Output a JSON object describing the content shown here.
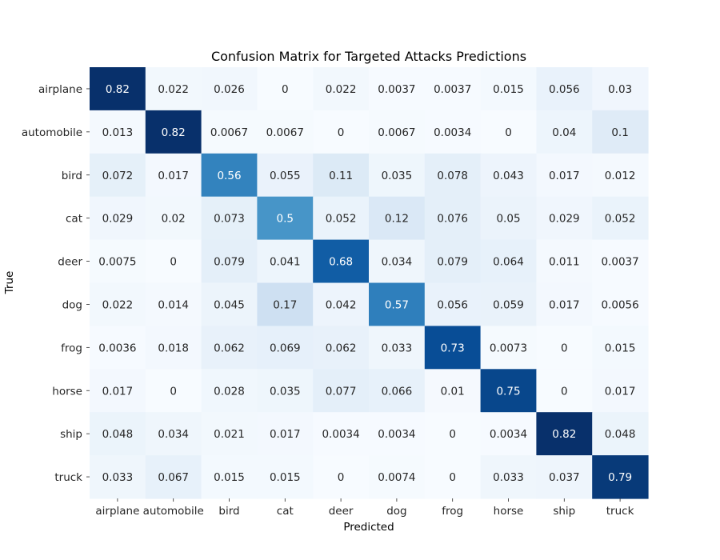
{
  "chart_data": {
    "type": "heatmap",
    "title": "Confusion Matrix for Targeted Attacks Predictions",
    "xlabel": "Predicted",
    "ylabel": "True",
    "x_categories": [
      "airplane",
      "automobile",
      "bird",
      "cat",
      "deer",
      "dog",
      "frog",
      "horse",
      "ship",
      "truck"
    ],
    "y_categories": [
      "airplane",
      "automobile",
      "bird",
      "cat",
      "deer",
      "dog",
      "frog",
      "horse",
      "ship",
      "truck"
    ],
    "colormap": "Blues",
    "value_range": [
      0,
      0.82
    ],
    "colorbar": false,
    "values": [
      [
        0.82,
        0.022,
        0.026,
        0,
        0.022,
        0.0037,
        0.0037,
        0.015,
        0.056,
        0.03
      ],
      [
        0.013,
        0.82,
        0.0067,
        0.0067,
        0,
        0.0067,
        0.0034,
        0,
        0.04,
        0.1
      ],
      [
        0.072,
        0.017,
        0.56,
        0.055,
        0.11,
        0.035,
        0.078,
        0.043,
        0.017,
        0.012
      ],
      [
        0.029,
        0.02,
        0.073,
        0.5,
        0.052,
        0.12,
        0.076,
        0.05,
        0.029,
        0.052
      ],
      [
        0.0075,
        0,
        0.079,
        0.041,
        0.68,
        0.034,
        0.079,
        0.064,
        0.011,
        0.0037
      ],
      [
        0.022,
        0.014,
        0.045,
        0.17,
        0.042,
        0.57,
        0.056,
        0.059,
        0.017,
        0.0056
      ],
      [
        0.0036,
        0.018,
        0.062,
        0.069,
        0.062,
        0.033,
        0.73,
        0.0073,
        0,
        0.015
      ],
      [
        0.017,
        0,
        0.028,
        0.035,
        0.077,
        0.066,
        0.01,
        0.75,
        0,
        0.017
      ],
      [
        0.048,
        0.034,
        0.021,
        0.017,
        0.0034,
        0.0034,
        0,
        0.0034,
        0.82,
        0.048
      ],
      [
        0.033,
        0.067,
        0.015,
        0.015,
        0,
        0.0074,
        0,
        0.033,
        0.037,
        0.79
      ]
    ]
  }
}
